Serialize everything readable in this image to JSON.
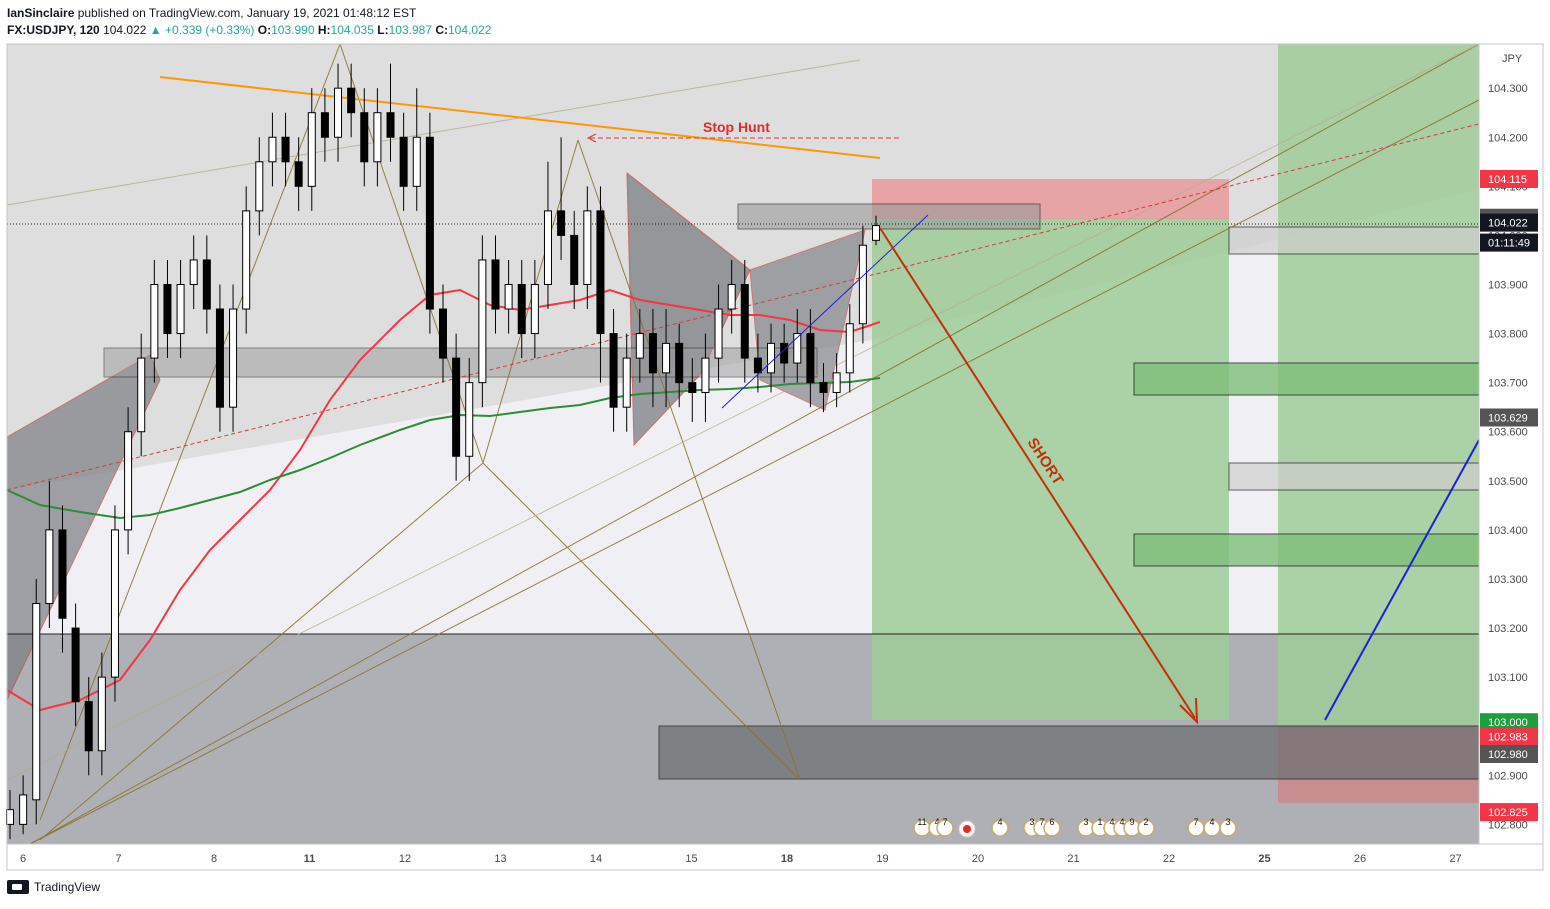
{
  "header": {
    "author": "IanSinclaire",
    "published_text": " published on TradingView.com, January 19, 2021 01:48:12 EST",
    "symbol": "FX:USDJPY, 120",
    "last": "104.022",
    "change": "+0.339 (+0.33%)",
    "o_label": "O:",
    "o_value": "103.990",
    "h_label": "H:",
    "h_value": "104.035",
    "l_label": "L:",
    "l_value": "103.987",
    "c_label": "C:",
    "c_value": "104.022"
  },
  "footer": {
    "brand": "TradingView"
  },
  "colors": {
    "bull": "#ffffff",
    "bear": "#000000",
    "ma_red": "#f23645",
    "ma_green": "#2e8b3a",
    "orange_line": "#ff9800",
    "profit_zone": "#9fcb98",
    "stop_zone": "#e89a9a",
    "short_arrow": "#c0300a",
    "blue_line": "#1a22d6"
  },
  "chart_data": {
    "type": "candlestick",
    "currency": "JPY",
    "x_ticks": [
      "6",
      "7",
      "8",
      "11",
      "12",
      "13",
      "14",
      "15",
      "18",
      "19",
      "20",
      "21",
      "22",
      "25",
      "26",
      "27"
    ],
    "y_ticks": [
      "104.300",
      "104.200",
      "104.100",
      "104.000",
      "103.900",
      "103.800",
      "103.700",
      "103.600",
      "103.500",
      "103.400",
      "103.300",
      "103.200",
      "103.100",
      "103.000",
      "102.900",
      "102.800"
    ],
    "ylim": [
      102.76,
      104.39
    ],
    "price_labels": [
      {
        "text": "104.115",
        "bg": "#f23645"
      },
      {
        "text": "104.036",
        "bg": "#555555"
      },
      {
        "text": "104.022",
        "bg": "#131722"
      },
      {
        "text": "01:11:49",
        "bg": "#131722"
      },
      {
        "text": "103.629",
        "bg": "#555555"
      },
      {
        "text": "103.000",
        "bg": "#1e9e3a"
      },
      {
        "text": "102.983",
        "bg": "#f23645"
      },
      {
        "text": "102.980",
        "bg": "#555555"
      },
      {
        "text": "102.825",
        "bg": "#f23645"
      }
    ],
    "annotations": {
      "stop_hunt": "Stop Hunt",
      "short": "SHORT"
    },
    "event_markers": [
      "11",
      "4",
      "7",
      "4",
      "3",
      "7",
      "6",
      "3",
      "1",
      "4",
      "4",
      "9",
      "2",
      "7",
      "4",
      "3"
    ],
    "candles": [
      [
        102.8,
        102.83,
        102.77,
        102.87
      ],
      [
        102.8,
        102.86,
        102.78,
        102.9
      ],
      [
        102.85,
        103.25,
        102.8,
        103.3
      ],
      [
        103.25,
        103.4,
        103.2,
        103.5
      ],
      [
        103.4,
        103.22,
        103.15,
        103.45
      ],
      [
        103.2,
        103.05,
        103.0,
        103.25
      ],
      [
        103.05,
        102.95,
        102.9,
        103.1
      ],
      [
        102.95,
        103.1,
        102.9,
        103.15
      ],
      [
        103.1,
        103.4,
        103.05,
        103.45
      ],
      [
        103.4,
        103.6,
        103.35,
        103.65
      ],
      [
        103.6,
        103.75,
        103.55,
        103.8
      ],
      [
        103.75,
        103.9,
        103.7,
        103.95
      ],
      [
        103.9,
        103.8,
        103.75,
        103.95
      ],
      [
        103.8,
        103.9,
        103.75,
        103.95
      ],
      [
        103.9,
        103.95,
        103.85,
        104.0
      ],
      [
        103.95,
        103.85,
        103.8,
        104.0
      ],
      [
        103.85,
        103.65,
        103.6,
        103.9
      ],
      [
        103.65,
        103.85,
        103.6,
        103.9
      ],
      [
        103.85,
        104.05,
        103.8,
        104.1
      ],
      [
        104.05,
        104.15,
        104.0,
        104.2
      ],
      [
        104.15,
        104.2,
        104.1,
        104.25
      ],
      [
        104.2,
        104.15,
        104.1,
        104.25
      ],
      [
        104.15,
        104.1,
        104.05,
        104.2
      ],
      [
        104.1,
        104.25,
        104.05,
        104.3
      ],
      [
        104.25,
        104.2,
        104.15,
        104.3
      ],
      [
        104.2,
        104.3,
        104.15,
        104.35
      ],
      [
        104.3,
        104.25,
        104.2,
        104.35
      ],
      [
        104.25,
        104.15,
        104.1,
        104.3
      ],
      [
        104.15,
        104.25,
        104.1,
        104.3
      ],
      [
        104.25,
        104.2,
        104.15,
        104.35
      ],
      [
        104.2,
        104.1,
        104.05,
        104.25
      ],
      [
        104.1,
        104.2,
        104.05,
        104.3
      ],
      [
        104.2,
        103.85,
        103.8,
        104.25
      ],
      [
        103.85,
        103.75,
        103.7,
        103.9
      ],
      [
        103.75,
        103.55,
        103.5,
        103.8
      ],
      [
        103.55,
        103.7,
        103.5,
        103.75
      ],
      [
        103.7,
        103.95,
        103.65,
        104.0
      ],
      [
        103.95,
        103.85,
        103.8,
        104.0
      ],
      [
        103.85,
        103.9,
        103.8,
        103.95
      ],
      [
        103.9,
        103.8,
        103.75,
        103.95
      ],
      [
        103.8,
        103.9,
        103.75,
        103.95
      ],
      [
        103.9,
        104.05,
        103.85,
        104.15
      ],
      [
        104.05,
        104.0,
        103.95,
        104.2
      ],
      [
        104.0,
        103.9,
        103.85,
        104.05
      ],
      [
        103.9,
        104.05,
        103.85,
        104.1
      ],
      [
        104.05,
        103.8,
        103.7,
        104.1
      ],
      [
        103.8,
        103.65,
        103.6,
        103.85
      ],
      [
        103.65,
        103.75,
        103.6,
        103.8
      ],
      [
        103.75,
        103.8,
        103.7,
        103.85
      ],
      [
        103.8,
        103.72,
        103.65,
        103.85
      ],
      [
        103.72,
        103.78,
        103.65,
        103.85
      ],
      [
        103.78,
        103.7,
        103.65,
        103.82
      ],
      [
        103.7,
        103.68,
        103.62,
        103.75
      ],
      [
        103.68,
        103.75,
        103.62,
        103.8
      ],
      [
        103.75,
        103.85,
        103.7,
        103.9
      ],
      [
        103.85,
        103.9,
        103.8,
        103.95
      ],
      [
        103.9,
        103.75,
        103.7,
        103.95
      ],
      [
        103.75,
        103.72,
        103.68,
        103.8
      ],
      [
        103.72,
        103.78,
        103.68,
        103.82
      ],
      [
        103.78,
        103.74,
        103.7,
        103.82
      ],
      [
        103.74,
        103.8,
        103.7,
        103.85
      ],
      [
        103.8,
        103.7,
        103.65,
        103.85
      ],
      [
        103.7,
        103.68,
        103.64,
        103.74
      ],
      [
        103.68,
        103.72,
        103.65,
        103.76
      ],
      [
        103.72,
        103.82,
        103.68,
        103.86
      ],
      [
        103.82,
        103.98,
        103.78,
        104.02
      ],
      [
        103.99,
        104.02,
        103.98,
        104.04
      ]
    ]
  }
}
